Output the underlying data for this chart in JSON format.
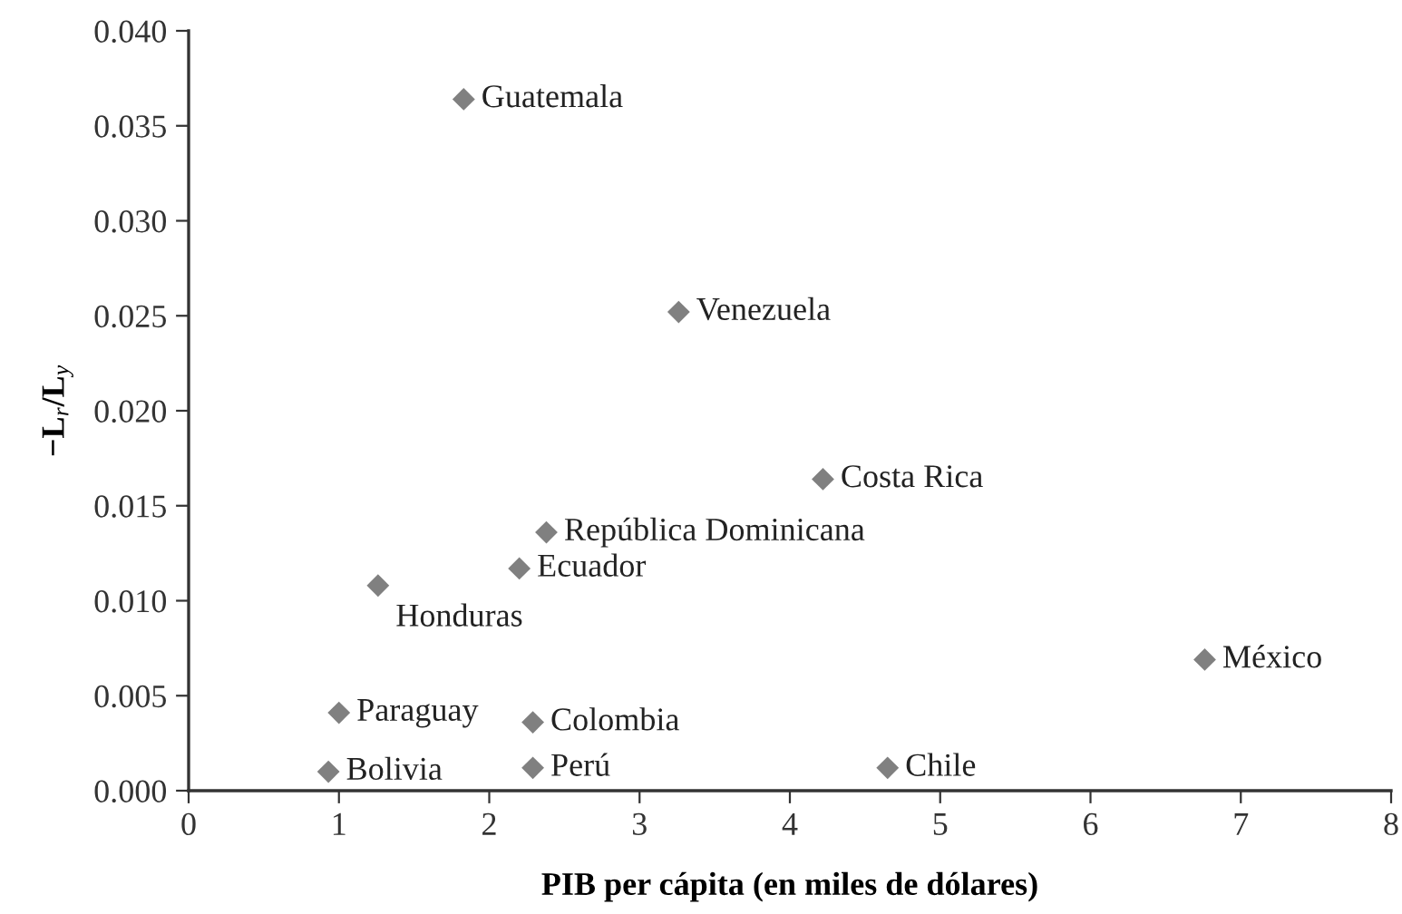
{
  "chart_data": {
    "type": "scatter",
    "xlabel": "PIB per cápita (en miles de dólares)",
    "ylabel": "−L$_{r}$/L$_{y}$",
    "series": [
      {
        "color": "#808080",
        "x": [
          1.83,
          3.26,
          4.22,
          2.38,
          2.2,
          1.26,
          1.0,
          2.29,
          0.93,
          2.29,
          4.65,
          6.76
        ],
        "values": [
          0.0364,
          0.0252,
          0.0164,
          0.0136,
          0.0117,
          0.0108,
          0.0041,
          0.0036,
          0.001,
          0.0012,
          0.0012,
          0.0069
        ]
      }
    ],
    "annotations": [
      {
        "text": "Guatemala",
        "x": 1.83,
        "y": 0.0364
      },
      {
        "text": "Venezuela",
        "x": 3.26,
        "y": 0.0252
      },
      {
        "text": "Costa Rica",
        "x": 4.22,
        "y": 0.0164
      },
      {
        "text": "República Dominicana",
        "x": 2.38,
        "y": 0.0136
      },
      {
        "text": "Ecuador",
        "x": 2.2,
        "y": 0.0117
      },
      {
        "text": "Honduras",
        "x": 1.26,
        "y": 0.0108
      },
      {
        "text": "Paraguay",
        "x": 1.0,
        "y": 0.0041
      },
      {
        "text": "Colombia",
        "x": 2.29,
        "y": 0.0036
      },
      {
        "text": "Bolivia",
        "x": 0.93,
        "y": 0.001
      },
      {
        "text": "Perú",
        "x": 2.29,
        "y": 0.0012
      },
      {
        "text": "Chile",
        "x": 4.65,
        "y": 0.0012
      },
      {
        "text": "México",
        "x": 6.76,
        "y": 0.0069
      }
    ],
    "xlim": [
      0,
      8
    ],
    "xticks": [
      0,
      1,
      2,
      3,
      4,
      5,
      6,
      7,
      8
    ],
    "ylim": [
      0,
      0.04
    ],
    "yticks": [
      {
        "value": 0,
        "label": "0.000"
      },
      {
        "value": 0.005,
        "label": "0.005"
      },
      {
        "value": 0.01,
        "label": "0.010"
      },
      {
        "value": 0.015,
        "label": "0.015"
      },
      {
        "value": 0.02,
        "label": "0.020"
      },
      {
        "value": 0.025,
        "label": "0.025"
      },
      {
        "value": 0.03,
        "label": "0.030"
      },
      {
        "value": 0.035,
        "label": "0.035"
      },
      {
        "value": 0.04,
        "label": "0.040"
      }
    ],
    "marker": "diamond",
    "grid": false,
    "legend": false
  }
}
